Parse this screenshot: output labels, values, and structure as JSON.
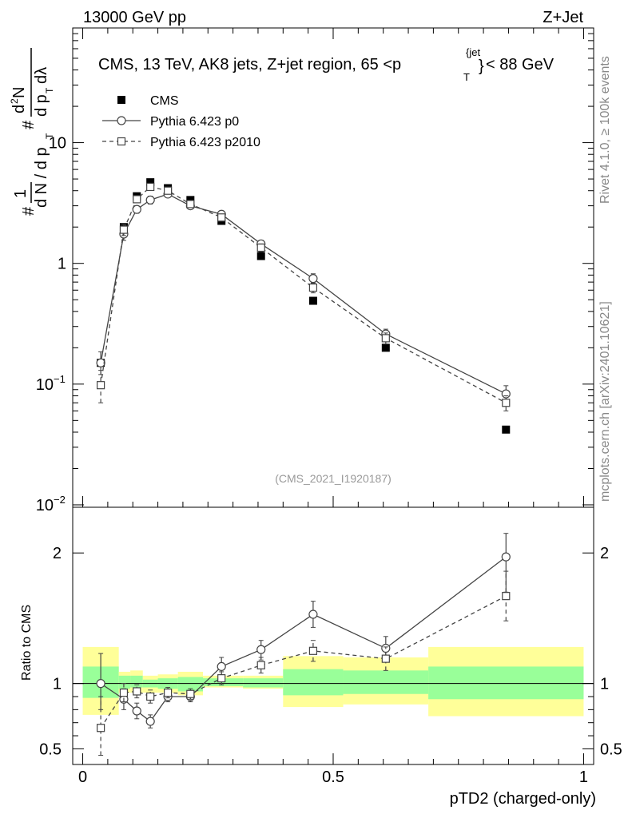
{
  "header": {
    "left": "13000 GeV pp",
    "right": "Z+Jet",
    "description": "CMS, 13 TeV, AK8 jets, Z+jet region, 65 <p",
    "desc_sub": "T",
    "desc_sup": "{jet",
    "desc_sup2": "}",
    "desc_tail": "< 88 GeV",
    "analysis_id": "(CMS_2021_I1920187)"
  },
  "side_labels": {
    "rivet": "Rivet 4.1.0, ≥ 100k events",
    "site": "mcplots.cern.ch [arXiv:2401.10621]"
  },
  "axis_labels": {
    "ylabel_main": "1/N dN/dp_T d²N/dp_T dλ",
    "ylabel_ratio": "Ratio to CMS",
    "xlabel": "pTD2 (charged-only)"
  },
  "chart_data": [
    {
      "type": "scatter",
      "panel": "main",
      "yscale": "log",
      "ylim": [
        0.01,
        100
      ],
      "xlim": [
        -0.02,
        1.02
      ],
      "yticks": [
        {
          "value": 10,
          "label": "10"
        },
        {
          "value": 1,
          "label": "1"
        },
        {
          "value": 0.1,
          "label": "10",
          "sup": "−1"
        },
        {
          "value": 0.01,
          "label": "10",
          "sup": "−2"
        }
      ],
      "legend": {
        "placement": "top-left",
        "entries": [
          {
            "label": "CMS",
            "marker": "filled-square",
            "line": "none"
          },
          {
            "label": "Pythia 6.423 p0",
            "marker": "open-circle",
            "line": "solid"
          },
          {
            "label": "Pythia 6.423 p2010",
            "marker": "open-square",
            "line": "dashed"
          }
        ]
      },
      "series": [
        {
          "name": "CMS",
          "x": [
            0.036,
            0.082,
            0.108,
            0.135,
            0.17,
            0.215,
            0.277,
            0.356,
            0.46,
            0.605,
            0.845
          ],
          "values": [
            0.15,
            2.0,
            3.6,
            4.7,
            4.2,
            3.35,
            2.25,
            1.15,
            0.49,
            0.2,
            0.042
          ]
        },
        {
          "name": "Pythia 6.423 p0",
          "x": [
            0.036,
            0.082,
            0.108,
            0.135,
            0.17,
            0.215,
            0.277,
            0.356,
            0.46,
            0.605,
            0.845
          ],
          "values": [
            0.15,
            1.75,
            2.8,
            3.35,
            3.75,
            3.0,
            2.55,
            1.45,
            0.75,
            0.26,
            0.083
          ],
          "err_lo": [
            0.12,
            1.55,
            2.6,
            3.1,
            3.55,
            2.85,
            2.4,
            1.35,
            0.68,
            0.235,
            0.072
          ],
          "err_hi": [
            0.185,
            1.95,
            3.0,
            3.6,
            3.95,
            3.15,
            2.7,
            1.55,
            0.82,
            0.285,
            0.097
          ]
        },
        {
          "name": "Pythia 6.423 p2010",
          "x": [
            0.036,
            0.082,
            0.108,
            0.135,
            0.17,
            0.215,
            0.277,
            0.356,
            0.46,
            0.605,
            0.845
          ],
          "values": [
            0.098,
            1.9,
            3.4,
            4.3,
            4.0,
            3.1,
            2.4,
            1.35,
            0.63,
            0.24,
            0.07
          ],
          "err_lo": [
            0.07,
            1.7,
            3.2,
            4.05,
            3.8,
            2.95,
            2.25,
            1.25,
            0.57,
            0.215,
            0.06
          ],
          "err_hi": [
            0.13,
            2.1,
            3.6,
            4.55,
            4.2,
            3.25,
            2.55,
            1.45,
            0.69,
            0.265,
            0.08
          ]
        }
      ]
    },
    {
      "type": "scatter",
      "panel": "ratio",
      "ylim": [
        0.38,
        2.35
      ],
      "xlim": [
        -0.02,
        1.02
      ],
      "yticks": [
        {
          "value": 2,
          "label": "2"
        },
        {
          "value": 1,
          "label": "1"
        },
        {
          "value": 0.5,
          "label": "0.5"
        }
      ],
      "xticks": [
        {
          "value": 0,
          "label": "0"
        },
        {
          "value": 0.5,
          "label": "0.5"
        },
        {
          "value": 1,
          "label": "1"
        }
      ],
      "bands": [
        {
          "x0": 0.0,
          "x1": 0.072,
          "inner": [
            0.89,
            1.13
          ],
          "outer": [
            0.76,
            1.28
          ]
        },
        {
          "x0": 0.072,
          "x1": 0.095,
          "inner": [
            0.96,
            1.06
          ],
          "outer": [
            0.93,
            1.09
          ]
        },
        {
          "x0": 0.095,
          "x1": 0.12,
          "inner": [
            0.97,
            1.06
          ],
          "outer": [
            0.93,
            1.1
          ]
        },
        {
          "x0": 0.12,
          "x1": 0.15,
          "inner": [
            0.97,
            1.03
          ],
          "outer": [
            0.93,
            1.06
          ]
        },
        {
          "x0": 0.15,
          "x1": 0.19,
          "inner": [
            0.96,
            1.04
          ],
          "outer": [
            0.93,
            1.07
          ]
        },
        {
          "x0": 0.19,
          "x1": 0.24,
          "inner": [
            0.94,
            1.05
          ],
          "outer": [
            0.91,
            1.09
          ]
        },
        {
          "x0": 0.24,
          "x1": 0.32,
          "inner": [
            0.98,
            1.04
          ],
          "outer": [
            0.97,
            1.06
          ]
        },
        {
          "x0": 0.32,
          "x1": 0.4,
          "inner": [
            0.97,
            1.04
          ],
          "outer": [
            0.96,
            1.06
          ]
        },
        {
          "x0": 0.4,
          "x1": 0.52,
          "inner": [
            0.91,
            1.11
          ],
          "outer": [
            0.82,
            1.21
          ]
        },
        {
          "x0": 0.52,
          "x1": 0.69,
          "inner": [
            0.92,
            1.1
          ],
          "outer": [
            0.84,
            1.2
          ]
        },
        {
          "x0": 0.69,
          "x1": 1.0,
          "inner": [
            0.88,
            1.13
          ],
          "outer": [
            0.75,
            1.28
          ]
        }
      ],
      "series": [
        {
          "name": "Pythia 6.423 p0",
          "x": [
            0.036,
            0.082,
            0.108,
            0.135,
            0.17,
            0.215,
            0.277,
            0.356,
            0.46,
            0.605,
            0.845
          ],
          "values": [
            1.0,
            0.88,
            0.79,
            0.71,
            0.9,
            0.9,
            1.13,
            1.26,
            1.53,
            1.27,
            1.97
          ],
          "err_lo": [
            0.8,
            0.8,
            0.73,
            0.66,
            0.86,
            0.86,
            1.06,
            1.18,
            1.43,
            1.18,
            1.7
          ],
          "err_hi": [
            1.23,
            0.96,
            0.85,
            0.76,
            0.94,
            0.94,
            1.2,
            1.33,
            1.63,
            1.36,
            2.15
          ]
        },
        {
          "name": "Pythia 6.423 p2010",
          "x": [
            0.036,
            0.082,
            0.108,
            0.135,
            0.17,
            0.215,
            0.277,
            0.356,
            0.46,
            0.605,
            0.845
          ],
          "values": [
            0.66,
            0.93,
            0.94,
            0.9,
            0.93,
            0.92,
            1.04,
            1.14,
            1.25,
            1.19,
            1.67
          ],
          "err_lo": [
            0.45,
            0.86,
            0.89,
            0.85,
            0.89,
            0.88,
            0.99,
            1.08,
            1.17,
            1.1,
            1.48
          ],
          "err_hi": [
            0.9,
            1.0,
            0.99,
            0.95,
            0.97,
            0.96,
            1.09,
            1.2,
            1.33,
            1.28,
            1.86
          ]
        }
      ]
    }
  ]
}
